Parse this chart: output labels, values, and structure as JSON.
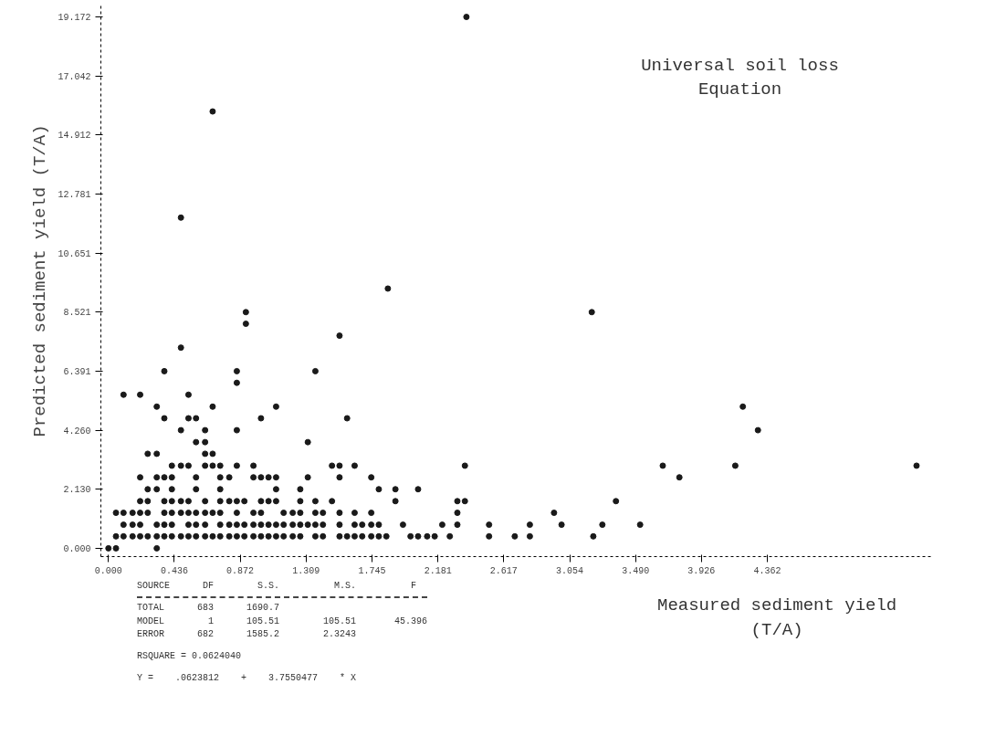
{
  "chart_data": {
    "type": "scatter",
    "title": "Universal soil loss Equation",
    "xlabel": "Measured sediment yield (T/A)",
    "ylabel": "Predicted sediment yield (T/A)",
    "annotations": [
      "SOURCE      DF        S.S.          M.S.          F",
      "TOTAL      683      1690.7",
      "MODEL        1      105.51        105.51       45.396",
      "ERROR      682      1585.2        2.3243",
      "RSQUARE = 0.0624040",
      "Y =    .0623812    +    3.7550477    * X"
    ],
    "xlim": [
      -0.05,
      5.45
    ],
    "ylim": [
      -0.3,
      19.6
    ],
    "xticks": [
      {
        "value": 0,
        "label": "0.000"
      },
      {
        "value": 0.436,
        "label": "0.436"
      },
      {
        "value": 0.872,
        "label": "0.872"
      },
      {
        "value": 1.309,
        "label": "1.309"
      },
      {
        "value": 1.745,
        "label": "1.745"
      },
      {
        "value": 2.181,
        "label": "2.181"
      },
      {
        "value": 2.617,
        "label": "2.617"
      },
      {
        "value": 3.054,
        "label": "3.054"
      },
      {
        "value": 3.49,
        "label": "3.490"
      },
      {
        "value": 3.926,
        "label": "3.926"
      },
      {
        "value": 4.362,
        "label": "4.362"
      }
    ],
    "yticks": [
      {
        "value": 0,
        "label": "0.000"
      },
      {
        "value": 2.13,
        "label": "2.130"
      },
      {
        "value": 4.26,
        "label": "4.260"
      },
      {
        "value": 6.391,
        "label": "6.391"
      },
      {
        "value": 8.521,
        "label": "8.521"
      },
      {
        "value": 10.651,
        "label": "10.651"
      },
      {
        "value": 12.781,
        "label": "12.781"
      },
      {
        "value": 14.912,
        "label": "14.912"
      },
      {
        "value": 17.042,
        "label": "17.042"
      },
      {
        "value": 19.172,
        "label": "19.172"
      }
    ],
    "grid": false,
    "marker": "circle",
    "series": [
      {
        "color": "#1a1a1a",
        "x": [
          2.37,
          0.69,
          0.48,
          1.85,
          0.91,
          3.2,
          0.91,
          1.53,
          0.48,
          0.37,
          0.85,
          1.37,
          0.85,
          0.1,
          0.21,
          0.53,
          0.32,
          0.69,
          1.11,
          4.2,
          0.37,
          0.53,
          0.58,
          1.01,
          1.58,
          0.48,
          0.64,
          0.85,
          4.3,
          0.58,
          0.64,
          1.32,
          0.26,
          0.32,
          0.64,
          0.69,
          0.42,
          0.48,
          0.53,
          0.64,
          0.69,
          0.74,
          0.85,
          0.96,
          1.48,
          1.53,
          1.63,
          2.36,
          3.67,
          4.15,
          5.35,
          0.21,
          0.32,
          0.37,
          0.42,
          0.58,
          0.74,
          0.8,
          0.96,
          1.01,
          1.06,
          1.11,
          1.32,
          1.53,
          1.74,
          3.78,
          0.26,
          0.32,
          0.42,
          0.58,
          0.74,
          1.11,
          1.27,
          1.79,
          1.9,
          2.05,
          0.21,
          0.26,
          0.37,
          0.42,
          0.48,
          0.53,
          0.64,
          0.74,
          0.8,
          0.85,
          0.9,
          1.01,
          1.06,
          1.11,
          1.27,
          1.37,
          1.48,
          1.9,
          2.31,
          2.36,
          3.36,
          0.05,
          0.1,
          0.16,
          0.21,
          0.26,
          0.37,
          0.42,
          0.48,
          0.53,
          0.58,
          0.64,
          0.69,
          0.74,
          0.85,
          0.96,
          1.01,
          1.16,
          1.22,
          1.27,
          1.37,
          1.42,
          1.53,
          1.63,
          1.74,
          2.31,
          2.95,
          0.1,
          0.16,
          0.21,
          0.32,
          0.37,
          0.42,
          0.53,
          0.58,
          0.64,
          0.74,
          0.8,
          0.85,
          0.9,
          0.96,
          1.01,
          1.06,
          1.11,
          1.16,
          1.22,
          1.27,
          1.32,
          1.37,
          1.42,
          1.53,
          1.63,
          1.68,
          1.74,
          1.79,
          1.95,
          2.21,
          2.31,
          2.52,
          2.79,
          3.0,
          3.27,
          3.52,
          0.05,
          0.1,
          0.16,
          0.21,
          0.26,
          0.32,
          0.37,
          0.42,
          0.48,
          0.53,
          0.58,
          0.64,
          0.69,
          0.74,
          0.8,
          0.85,
          0.9,
          0.96,
          1.01,
          1.06,
          1.11,
          1.16,
          1.22,
          1.27,
          1.37,
          1.42,
          1.53,
          1.58,
          1.63,
          1.68,
          1.74,
          1.79,
          1.84,
          2.0,
          2.05,
          2.11,
          2.16,
          2.26,
          2.52,
          2.69,
          2.79,
          3.21,
          0.0,
          0.05,
          0.32
        ],
        "values": [
          19.17,
          15.76,
          11.93,
          9.37,
          8.52,
          8.52,
          8.1,
          7.67,
          7.24,
          6.39,
          6.39,
          6.39,
          5.97,
          5.54,
          5.54,
          5.54,
          5.11,
          5.11,
          5.11,
          5.11,
          4.69,
          4.69,
          4.69,
          4.69,
          4.69,
          4.26,
          4.26,
          4.26,
          4.26,
          3.83,
          3.83,
          3.83,
          3.41,
          3.41,
          3.41,
          3.41,
          2.98,
          2.98,
          2.98,
          2.98,
          2.98,
          2.98,
          2.98,
          2.98,
          2.98,
          2.98,
          2.98,
          2.98,
          2.98,
          2.98,
          2.98,
          2.56,
          2.56,
          2.56,
          2.56,
          2.56,
          2.56,
          2.56,
          2.56,
          2.56,
          2.56,
          2.56,
          2.56,
          2.56,
          2.56,
          2.56,
          2.13,
          2.13,
          2.13,
          2.13,
          2.13,
          2.13,
          2.13,
          2.13,
          2.13,
          2.13,
          1.7,
          1.7,
          1.7,
          1.7,
          1.7,
          1.7,
          1.7,
          1.7,
          1.7,
          1.7,
          1.7,
          1.7,
          1.7,
          1.7,
          1.7,
          1.7,
          1.7,
          1.7,
          1.7,
          1.7,
          1.7,
          1.28,
          1.28,
          1.28,
          1.28,
          1.28,
          1.28,
          1.28,
          1.28,
          1.28,
          1.28,
          1.28,
          1.28,
          1.28,
          1.28,
          1.28,
          1.28,
          1.28,
          1.28,
          1.28,
          1.28,
          1.28,
          1.28,
          1.28,
          1.28,
          1.28,
          1.28,
          0.85,
          0.85,
          0.85,
          0.85,
          0.85,
          0.85,
          0.85,
          0.85,
          0.85,
          0.85,
          0.85,
          0.85,
          0.85,
          0.85,
          0.85,
          0.85,
          0.85,
          0.85,
          0.85,
          0.85,
          0.85,
          0.85,
          0.85,
          0.85,
          0.85,
          0.85,
          0.85,
          0.85,
          0.85,
          0.85,
          0.85,
          0.85,
          0.85,
          0.85,
          0.85,
          0.85,
          0.43,
          0.43,
          0.43,
          0.43,
          0.43,
          0.43,
          0.43,
          0.43,
          0.43,
          0.43,
          0.43,
          0.43,
          0.43,
          0.43,
          0.43,
          0.43,
          0.43,
          0.43,
          0.43,
          0.43,
          0.43,
          0.43,
          0.43,
          0.43,
          0.43,
          0.43,
          0.43,
          0.43,
          0.43,
          0.43,
          0.43,
          0.43,
          0.43,
          0.43,
          0.43,
          0.43,
          0.43,
          0.43,
          0.43,
          0.43,
          0.43,
          0.43,
          0.0,
          0.0,
          0.0
        ]
      }
    ]
  }
}
